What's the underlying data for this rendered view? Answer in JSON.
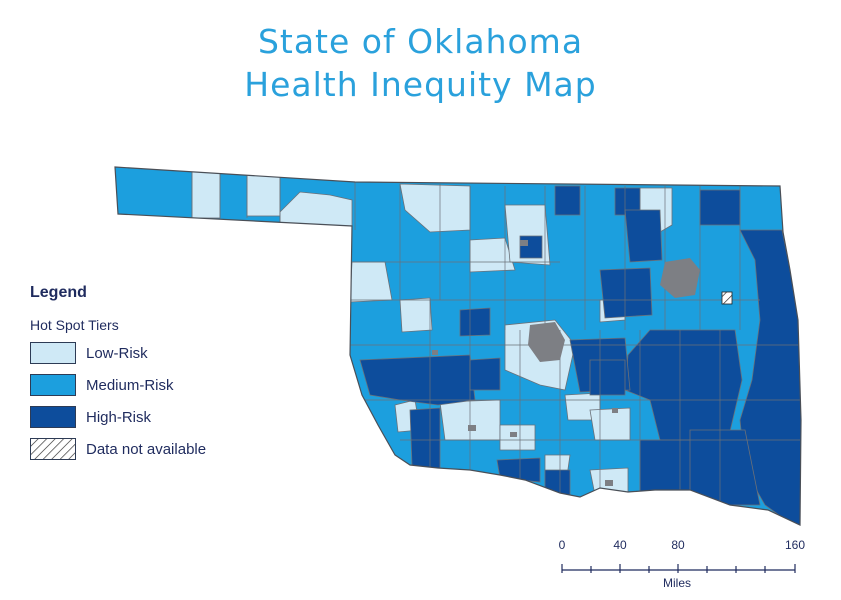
{
  "title": {
    "line1": "State of Oklahoma",
    "line2": "Health Inequity Map"
  },
  "legend": {
    "heading": "Legend",
    "subheading": "Hot Spot Tiers",
    "items": [
      {
        "label": "Low-Risk",
        "color": "#cfe9f6"
      },
      {
        "label": "Medium-Risk",
        "color": "#1c9fde"
      },
      {
        "label": "High-Risk",
        "color": "#0d4d9c"
      },
      {
        "label": "Data not available",
        "color": "hatch"
      }
    ]
  },
  "scale_bar": {
    "ticks": [
      "0",
      "40",
      "80",
      "160"
    ],
    "units": "Miles"
  },
  "colors": {
    "title": "#2aa1dc",
    "text": "#1f2b5e",
    "border": "#6b7078",
    "urban": "#7d7f84"
  }
}
